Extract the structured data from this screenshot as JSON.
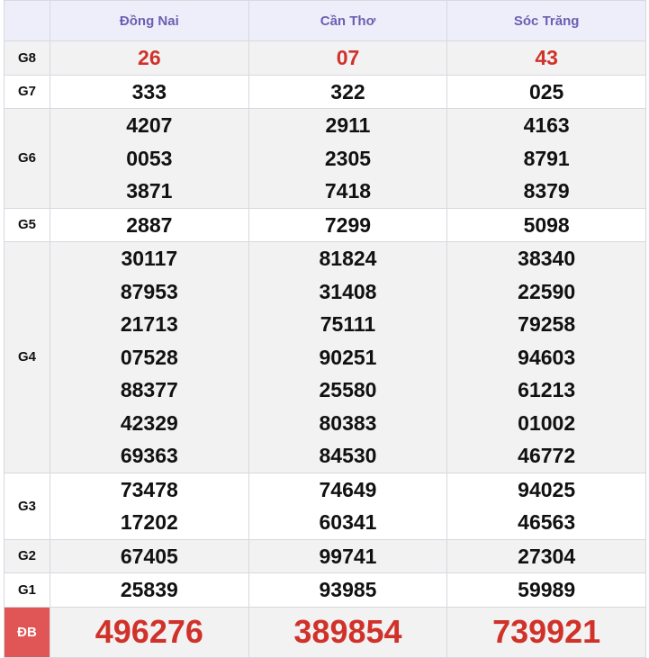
{
  "columns": [
    "Đồng Nai",
    "Cần Thơ",
    "Sóc Trăng"
  ],
  "rows": [
    {
      "label": "G8",
      "values": [
        [
          "26"
        ],
        [
          "07"
        ],
        [
          "43"
        ]
      ]
    },
    {
      "label": "G7",
      "values": [
        [
          "333"
        ],
        [
          "322"
        ],
        [
          "025"
        ]
      ]
    },
    {
      "label": "G6",
      "values": [
        [
          "4207",
          "0053",
          "3871"
        ],
        [
          "2911",
          "2305",
          "7418"
        ],
        [
          "4163",
          "8791",
          "8379"
        ]
      ]
    },
    {
      "label": "G5",
      "values": [
        [
          "2887"
        ],
        [
          "7299"
        ],
        [
          "5098"
        ]
      ]
    },
    {
      "label": "G4",
      "values": [
        [
          "30117",
          "87953",
          "21713",
          "07528",
          "88377",
          "42329",
          "69363"
        ],
        [
          "81824",
          "31408",
          "75111",
          "90251",
          "25580",
          "80383",
          "84530"
        ],
        [
          "38340",
          "22590",
          "79258",
          "94603",
          "61213",
          "01002",
          "46772"
        ]
      ]
    },
    {
      "label": "G3",
      "values": [
        [
          "73478",
          "17202"
        ],
        [
          "74649",
          "60341"
        ],
        [
          "94025",
          "46563"
        ]
      ]
    },
    {
      "label": "G2",
      "values": [
        [
          "67405"
        ],
        [
          "99741"
        ],
        [
          "27304"
        ]
      ]
    },
    {
      "label": "G1",
      "values": [
        [
          "25839"
        ],
        [
          "93985"
        ],
        [
          "59989"
        ]
      ]
    },
    {
      "label": "ĐB",
      "values": [
        [
          "496276"
        ],
        [
          "389854"
        ],
        [
          "739921"
        ]
      ]
    }
  ],
  "colors": {
    "header_text": "#6a5fb3",
    "highlight": "#d0322a",
    "special_label_bg": "#e05555"
  }
}
